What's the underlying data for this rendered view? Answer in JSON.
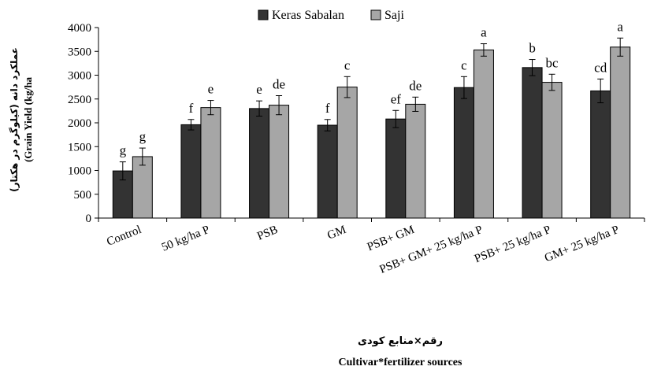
{
  "chart_data": {
    "type": "bar",
    "categories": [
      "Control",
      "50 kg/ha P",
      "PSB",
      "GM",
      "PSB+ GM",
      "PSB+ GM+ 25 kg/ha P",
      "PSB+ 25 kg/ha P",
      "GM+ 25 kg/ha P"
    ],
    "series": [
      {
        "name": "Keras Sabalan",
        "color": "#333333",
        "values": [
          990,
          1960,
          2300,
          1950,
          2080,
          2740,
          3160,
          2670
        ],
        "errors": [
          190,
          110,
          160,
          120,
          180,
          230,
          170,
          250
        ],
        "letters": [
          "g",
          "f",
          "e",
          "f",
          "ef",
          "c",
          "b",
          "cd"
        ]
      },
      {
        "name": "Saji",
        "color": "#a6a6a6",
        "values": [
          1290,
          2320,
          2370,
          2750,
          2390,
          3530,
          2850,
          3590
        ],
        "errors": [
          180,
          150,
          200,
          220,
          150,
          130,
          170,
          190
        ],
        "letters": [
          "g",
          "e",
          "de",
          "c",
          "de",
          "a",
          "bc",
          "a"
        ]
      }
    ],
    "ylim": [
      0,
      4000
    ],
    "yticks": [
      0,
      500,
      1000,
      1500,
      2000,
      2500,
      3000,
      3500,
      4000
    ],
    "ylabel_fa": "عملکرد دانه (کیلوگرم در هکتار)",
    "ylabel_en": "(Grain Yield (kg/ha",
    "xlabel_fa": "رقم×منابع کودی",
    "xlabel_en": "Cultivar*fertilizer sources",
    "legend_position": "top-center",
    "grid": false
  }
}
